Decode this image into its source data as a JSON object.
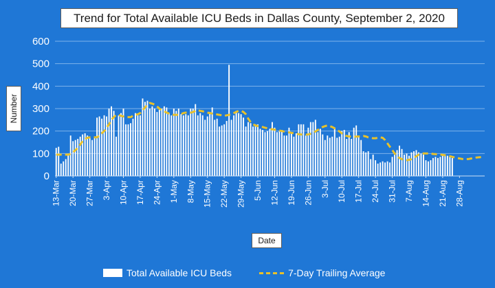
{
  "chart_data": {
    "type": "bar",
    "title": "Trend for Total Available ICU Beds in Dallas County, September 2, 2020",
    "xlabel": "Date",
    "ylabel": "Number",
    "ylim": [
      0,
      600
    ],
    "yticks": [
      "0",
      "100",
      "200",
      "300",
      "400",
      "500",
      "600"
    ],
    "grid": true,
    "legend_position": "bottom",
    "x_tick_labels": [
      "13-Mar",
      "20-Mar",
      "27-Mar",
      "3-Apr",
      "10-Apr",
      "17-Apr",
      "24-Apr",
      "1-May",
      "8-May",
      "15-May",
      "22-May",
      "29-May",
      "5-Jun",
      "12-Jun",
      "19-Jun",
      "26-Jun",
      "3-Jul",
      "10-Jul",
      "17-Jul",
      "24-Jul",
      "31-Jul",
      "7-Aug",
      "14-Aug",
      "21-Aug",
      "28-Aug"
    ],
    "start_date": "13-Mar",
    "series": [
      {
        "name": "Total Available ICU Beds",
        "kind": "bar",
        "color": "#ffffff",
        "values": [
          125,
          130,
          55,
          65,
          75,
          100,
          180,
          155,
          160,
          165,
          175,
          185,
          190,
          180,
          175,
          160,
          175,
          260,
          265,
          255,
          270,
          265,
          300,
          310,
          290,
          175,
          270,
          280,
          300,
          230,
          230,
          235,
          255,
          280,
          270,
          270,
          345,
          330,
          335,
          300,
          310,
          300,
          285,
          295,
          300,
          310,
          305,
          280,
          270,
          300,
          290,
          300,
          275,
          270,
          275,
          270,
          300,
          300,
          320,
          270,
          280,
          270,
          250,
          265,
          285,
          305,
          250,
          255,
          220,
          225,
          230,
          245,
          495,
          250,
          270,
          290,
          280,
          275,
          260,
          220,
          240,
          235,
          220,
          230,
          230,
          210,
          205,
          195,
          200,
          210,
          240,
          215,
          195,
          200,
          205,
          180,
          180,
          215,
          190,
          175,
          190,
          230,
          230,
          230,
          180,
          215,
          240,
          240,
          250,
          195,
          210,
          185,
          160,
          180,
          170,
          175,
          215,
          170,
          175,
          200,
          205,
          165,
          195,
          165,
          215,
          225,
          175,
          160,
          110,
          105,
          110,
          75,
          95,
          70,
          55,
          60,
          65,
          60,
          65,
          60,
          85,
          95,
          115,
          135,
          120,
          95,
          100,
          90,
          105,
          110,
          115,
          105,
          100,
          95,
          70,
          65,
          70,
          80,
          85,
          80,
          85,
          90,
          95,
          90,
          85,
          80
        ]
      },
      {
        "name": "7-Day Trailing Average",
        "kind": "line",
        "style": "dashed",
        "color": "#e8c12a",
        "values": [
          95,
          95,
          95,
          95,
          95,
          95,
          98,
          105,
          115,
          125,
          140,
          155,
          165,
          170,
          172,
          172,
          172,
          172,
          180,
          190,
          200,
          215,
          230,
          250,
          262,
          272,
          272,
          268,
          265,
          262,
          262,
          262,
          268,
          272,
          275,
          280,
          292,
          305,
          318,
          325,
          322,
          318,
          310,
          300,
          292,
          288,
          282,
          278,
          275,
          272,
          272,
          272,
          275,
          280,
          282,
          282,
          282,
          285,
          290,
          292,
          290,
          288,
          285,
          282,
          280,
          278,
          276,
          274,
          272,
          270,
          268,
          270,
          272,
          275,
          280,
          285,
          290,
          290,
          285,
          275,
          255,
          240,
          230,
          225,
          222,
          220,
          218,
          215,
          212,
          210,
          208,
          206,
          204,
          202,
          200,
          198,
          196,
          194,
          192,
          190,
          188,
          186,
          185,
          184,
          184,
          185,
          188,
          192,
          198,
          205,
          212,
          218,
          222,
          225,
          222,
          218,
          212,
          205,
          198,
          190,
          183,
          178,
          176,
          175,
          175,
          175,
          176,
          177,
          178,
          176,
          172,
          170,
          168,
          168,
          170,
          172,
          170,
          160,
          145,
          130,
          115,
          100,
          88,
          80,
          75,
          72,
          70,
          72,
          75,
          80,
          88,
          95,
          100,
          100,
          100,
          100,
          100,
          98,
          97,
          96,
          95,
          94,
          92,
          90,
          88,
          85,
          82,
          80,
          78,
          76,
          75,
          75,
          76,
          78,
          80,
          82,
          83,
          84,
          84
        ]
      }
    ]
  }
}
